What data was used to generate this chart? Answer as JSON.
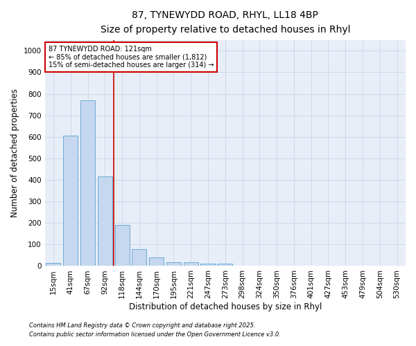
{
  "title_line1": "87, TYNEWYDD ROAD, RHYL, LL18 4BP",
  "title_line2": "Size of property relative to detached houses in Rhyl",
  "xlabel": "Distribution of detached houses by size in Rhyl",
  "ylabel": "Number of detached properties",
  "categories": [
    "15sqm",
    "41sqm",
    "67sqm",
    "92sqm",
    "118sqm",
    "144sqm",
    "170sqm",
    "195sqm",
    "221sqm",
    "247sqm",
    "273sqm",
    "298sqm",
    "324sqm",
    "350sqm",
    "376sqm",
    "401sqm",
    "427sqm",
    "453sqm",
    "479sqm",
    "504sqm",
    "530sqm"
  ],
  "values": [
    15,
    605,
    770,
    415,
    190,
    78,
    40,
    18,
    18,
    12,
    12,
    0,
    0,
    0,
    0,
    0,
    0,
    0,
    0,
    0,
    0
  ],
  "bar_color": "#c5d8ef",
  "bar_edge_color": "#6aaad4",
  "vline_pos": 3.5,
  "vline_color": "#cc0000",
  "annotation_text": "87 TYNEWYDD ROAD: 121sqm\n← 85% of detached houses are smaller (1,812)\n15% of semi-detached houses are larger (314) →",
  "annotation_box_color": "#cc0000",
  "ylim": [
    0,
    1050
  ],
  "yticks": [
    0,
    100,
    200,
    300,
    400,
    500,
    600,
    700,
    800,
    900,
    1000
  ],
  "grid_color": "#d0d8e8",
  "bg_color": "#e8eef8",
  "fig_bg_color": "#ffffff",
  "footer_line1": "Contains HM Land Registry data © Crown copyright and database right 2025.",
  "footer_line2": "Contains public sector information licensed under the Open Government Licence v3.0.",
  "title_fontsize": 10,
  "subtitle_fontsize": 9,
  "axis_label_fontsize": 8.5,
  "tick_fontsize": 7.5,
  "annotation_fontsize": 7,
  "footer_fontsize": 6
}
